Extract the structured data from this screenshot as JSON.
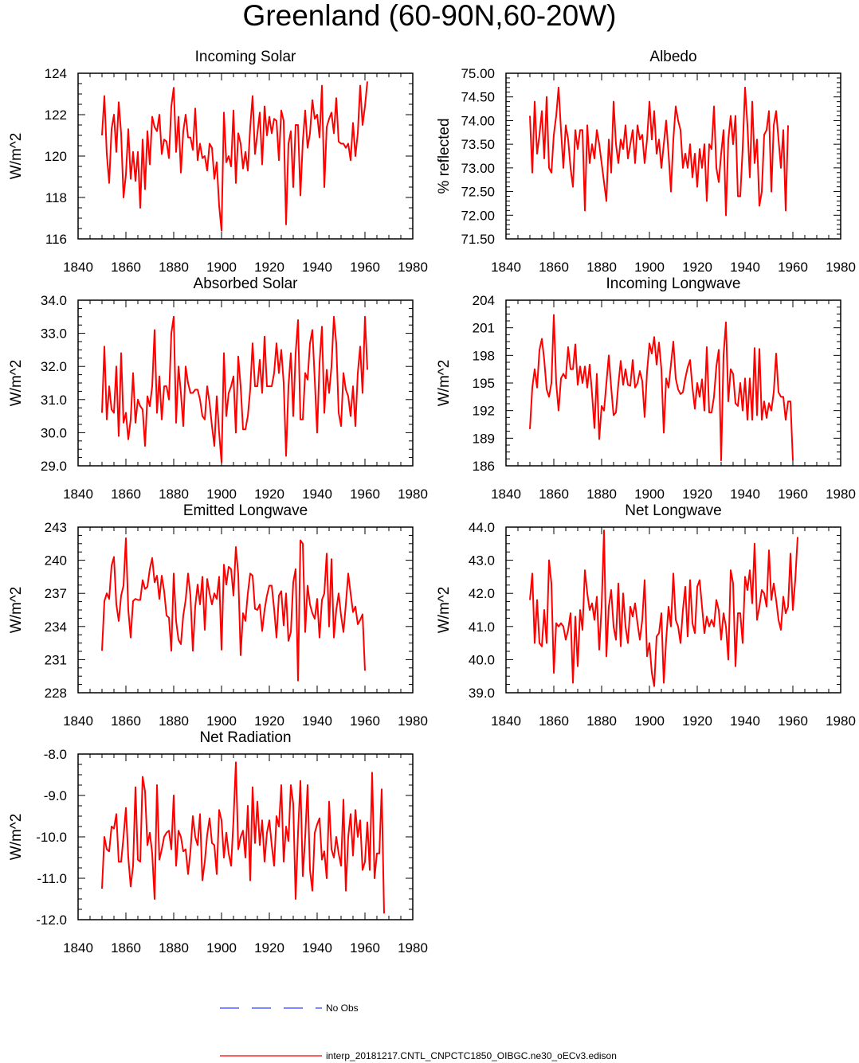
{
  "figure": {
    "title": "Greenland (60-90N,60-20W)",
    "legend": [
      {
        "label": "No Obs",
        "color": "#3344ff",
        "style": "dashed"
      },
      {
        "label": "interp_20181217.CNTL_CNPCTC1850_OIBGC.ne30_oECv3.edison",
        "color": "#ff0000",
        "style": "solid"
      }
    ]
  },
  "chart_data": [
    {
      "type": "line",
      "title": "Incoming Solar",
      "ylabel": "W/m^2",
      "xlim": [
        1840,
        1980
      ],
      "xticks": [
        1840,
        1860,
        1880,
        1900,
        1920,
        1940,
        1960,
        1980
      ],
      "ylim": [
        116,
        124
      ],
      "yticks": [
        "116",
        "118",
        "120",
        "122",
        "124"
      ],
      "x_start": 1850,
      "color": "#ff0000",
      "values": [
        121.0,
        122.9,
        120.1,
        118.7,
        121.3,
        122.0,
        120.2,
        122.6,
        121.1,
        118.0,
        119.1,
        121.3,
        118.9,
        120.2,
        118.8,
        120.2,
        117.5,
        120.8,
        118.4,
        121.2,
        119.6,
        121.9,
        121.4,
        121.2,
        122.0,
        120.1,
        120.8,
        120.7,
        119.9,
        122.4,
        123.3,
        120.2,
        121.9,
        119.2,
        121.2,
        122.0,
        120.9,
        120.9,
        120.3,
        122.3,
        119.8,
        120.6,
        119.9,
        120.0,
        119.3,
        120.6,
        120.4,
        118.9,
        119.7,
        117.6,
        116.4,
        122.1,
        119.7,
        120.0,
        119.5,
        122.2,
        118.7,
        121.1,
        120.6,
        119.4,
        120.2,
        119.3,
        121.4,
        122.9,
        120.1,
        121.1,
        122.1,
        119.6,
        122.4,
        121.0,
        121.9,
        121.1,
        121.8,
        121.7,
        119.8,
        122.2,
        121.7,
        116.7,
        120.6,
        121.2,
        118.5,
        121.5,
        121.5,
        118.1,
        120.7,
        122.2,
        120.4,
        121.1,
        122.7,
        121.8,
        122.0,
        120.9,
        123.4,
        118.5,
        121.4,
        121.8,
        122.1,
        121.1,
        122.8,
        120.7,
        120.6,
        120.6,
        120.4,
        120.6,
        119.8,
        121.6,
        120.0,
        121.1,
        123.4,
        121.5,
        122.4,
        123.6
      ]
    },
    {
      "type": "line",
      "title": "Albedo",
      "ylabel": "% reflected",
      "xlim": [
        1840,
        1980
      ],
      "xticks": [
        1840,
        1860,
        1880,
        1900,
        1920,
        1940,
        1960,
        1980
      ],
      "ylim": [
        71.5,
        75.0
      ],
      "yticks": [
        "71.50",
        "72.00",
        "72.50",
        "73.00",
        "73.50",
        "74.00",
        "74.50",
        "75.00"
      ],
      "x_start": 1850,
      "color": "#ff0000",
      "values": [
        74.1,
        72.9,
        74.4,
        73.3,
        73.7,
        74.2,
        73.2,
        74.5,
        73.0,
        72.9,
        73.7,
        74.1,
        74.7,
        73.8,
        73.0,
        73.9,
        73.6,
        73.0,
        72.6,
        73.8,
        73.4,
        73.8,
        73.8,
        72.1,
        73.9,
        73.1,
        73.5,
        73.2,
        73.8,
        73.5,
        73.1,
        72.7,
        72.3,
        73.6,
        72.9,
        74.4,
        73.5,
        73.1,
        73.6,
        73.4,
        73.9,
        73.2,
        73.5,
        73.8,
        73.1,
        73.9,
        73.6,
        73.7,
        73.1,
        73.6,
        74.4,
        73.6,
        74.2,
        73.3,
        73.6,
        73.0,
        73.5,
        74.0,
        73.3,
        72.5,
        73.6,
        74.3,
        74.0,
        73.8,
        73.0,
        73.3,
        73.0,
        73.5,
        72.8,
        73.3,
        72.6,
        73.4,
        73.0,
        73.5,
        72.3,
        73.5,
        73.4,
        74.3,
        73.0,
        72.7,
        73.3,
        73.8,
        72.0,
        73.6,
        74.1,
        73.5,
        74.1,
        72.4,
        72.4,
        73.4,
        74.7,
        73.9,
        72.8,
        74.4,
        73.1,
        73.6,
        72.2,
        72.5,
        73.7,
        73.8,
        74.2,
        72.5,
        73.9,
        74.2,
        73.6,
        73.0,
        73.8,
        72.1,
        73.9
      ]
    },
    {
      "type": "line",
      "title": "Absorbed Solar",
      "ylabel": "W/m^2",
      "xlim": [
        1840,
        1980
      ],
      "xticks": [
        1840,
        1860,
        1880,
        1900,
        1920,
        1940,
        1960,
        1980
      ],
      "ylim": [
        29.0,
        34.0
      ],
      "yticks": [
        "29.0",
        "30.0",
        "31.0",
        "32.0",
        "33.0",
        "34.0"
      ],
      "x_start": 1850,
      "color": "#ff0000",
      "values": [
        30.6,
        32.6,
        30.4,
        31.4,
        30.7,
        30.6,
        32.0,
        29.9,
        32.4,
        30.3,
        30.6,
        29.8,
        30.4,
        31.8,
        30.3,
        31.0,
        30.8,
        30.7,
        29.6,
        31.1,
        30.8,
        31.4,
        33.1,
        30.6,
        31.7,
        30.4,
        31.4,
        31.4,
        31.0,
        33.0,
        33.5,
        30.3,
        32.0,
        31.2,
        30.2,
        32.0,
        31.5,
        31.2,
        31.2,
        31.3,
        31.3,
        31.0,
        30.5,
        30.4,
        31.4,
        30.9,
        30.2,
        29.6,
        31.1,
        30.0,
        29.1,
        32.4,
        30.5,
        31.2,
        31.4,
        31.7,
        30.0,
        32.3,
        31.4,
        30.1,
        30.1,
        30.5,
        31.3,
        32.7,
        31.4,
        31.4,
        32.2,
        31.2,
        32.9,
        31.4,
        31.4,
        31.4,
        31.8,
        32.7,
        31.8,
        32.5,
        31.5,
        29.3,
        31.4,
        32.4,
        30.5,
        32.4,
        33.4,
        30.4,
        30.4,
        31.8,
        31.6,
        32.7,
        33.1,
        31.6,
        30.0,
        32.1,
        33.2,
        30.6,
        31.9,
        31.2,
        32.0,
        33.5,
        32.7,
        30.6,
        30.2,
        31.8,
        31.3,
        31.1,
        30.5,
        31.4,
        30.2,
        31.8,
        32.6,
        31.2,
        33.5,
        31.9
      ]
    },
    {
      "type": "line",
      "title": "Incoming Longwave",
      "ylabel": "W/m^2",
      "xlim": [
        1840,
        1980
      ],
      "xticks": [
        1840,
        1860,
        1880,
        1900,
        1920,
        1940,
        1960,
        1980
      ],
      "ylim": [
        186,
        204
      ],
      "yticks": [
        "186",
        "189",
        "192",
        "195",
        "198",
        "201",
        "204"
      ],
      "x_start": 1850,
      "color": "#ff0000",
      "values": [
        190.0,
        194.5,
        196.5,
        194.5,
        198.6,
        199.8,
        197.5,
        194.3,
        193.5,
        195.0,
        202.4,
        195.0,
        192.0,
        195.5,
        196.0,
        195.5,
        198.9,
        196.5,
        196.5,
        199.2,
        194.8,
        196.8,
        195.0,
        196.8,
        194.5,
        197.0,
        193.8,
        190.1,
        196.0,
        188.9,
        192.5,
        192.0,
        195.0,
        198.0,
        194.5,
        191.5,
        191.8,
        194.9,
        197.4,
        194.8,
        196.5,
        194.8,
        194.7,
        197.5,
        194.5,
        195.0,
        196.3,
        195.2,
        191.3,
        196.2,
        199.3,
        198.2,
        200.0,
        197.0,
        199.4,
        196.5,
        189.6,
        195.5,
        194.5,
        197.0,
        199.5,
        195.5,
        194.3,
        193.8,
        194.0,
        195.5,
        196.7,
        197.5,
        194.5,
        192.2,
        195.0,
        193.5,
        195.4,
        192.0,
        198.9,
        191.8,
        191.8,
        193.5,
        196.8,
        198.6,
        186.6,
        198.0,
        201.6,
        193.0,
        196.5,
        196.0,
        192.8,
        192.5,
        195.0,
        192.0,
        195.5,
        191.0,
        195.5,
        191.0,
        198.8,
        191.5,
        198.7,
        191.0,
        193.0,
        191.2,
        192.8,
        192.0,
        194.0,
        198.2,
        194.0,
        193.5,
        193.5,
        191.0,
        193.0,
        193.0,
        186.6
      ]
    },
    {
      "type": "line",
      "title": "Emitted Longwave",
      "ylabel": "W/m^2",
      "xlim": [
        1840,
        1980
      ],
      "xticks": [
        1840,
        1860,
        1880,
        1900,
        1920,
        1940,
        1960,
        1980
      ],
      "ylim": [
        228,
        243
      ],
      "yticks": [
        "228",
        "231",
        "234",
        "237",
        "240",
        "243"
      ],
      "x_start": 1850,
      "color": "#ff0000",
      "values": [
        231.8,
        236.3,
        237.0,
        236.5,
        239.5,
        240.3,
        236.0,
        234.5,
        236.8,
        237.7,
        242.0,
        235.5,
        233.0,
        236.3,
        236.5,
        236.4,
        236.4,
        238.2,
        237.4,
        237.6,
        239.2,
        240.2,
        238.0,
        238.6,
        236.5,
        238.6,
        237.2,
        235.0,
        234.8,
        231.8,
        238.8,
        234.5,
        232.8,
        232.4,
        235.0,
        236.4,
        238.8,
        236.8,
        231.8,
        235.8,
        237.8,
        236.0,
        238.5,
        233.7,
        238.3,
        237.0,
        236.0,
        237.0,
        236.5,
        238.5,
        231.9,
        239.6,
        237.8,
        239.4,
        239.2,
        236.8,
        241.2,
        238.7,
        231.4,
        235.2,
        234.5,
        237.0,
        238.8,
        238.6,
        235.6,
        235.5,
        236.0,
        233.6,
        235.5,
        236.8,
        237.7,
        237.7,
        235.6,
        233.0,
        236.8,
        237.2,
        234.1,
        237.0,
        232.7,
        233.5,
        238.0,
        239.2,
        229.1,
        241.8,
        241.5,
        233.5,
        237.7,
        236.0,
        235.2,
        234.7,
        236.5,
        233.0,
        236.4,
        237.0,
        240.6,
        234.0,
        240.1,
        233.0,
        235.5,
        237.0,
        235.0,
        233.5,
        236.0,
        238.8,
        237.0,
        235.3,
        235.8,
        234.2,
        234.6,
        235.1,
        230.0
      ]
    },
    {
      "type": "line",
      "title": "Net Longwave",
      "ylabel": "W/m^2",
      "xlim": [
        1840,
        1980
      ],
      "xticks": [
        1840,
        1860,
        1880,
        1900,
        1920,
        1940,
        1960,
        1980
      ],
      "ylim": [
        39.0,
        44.0
      ],
      "yticks": [
        "39.0",
        "40.0",
        "41.0",
        "42.0",
        "43.0",
        "44.0"
      ],
      "x_start": 1850,
      "color": "#ff0000",
      "values": [
        41.8,
        42.6,
        40.5,
        41.8,
        40.5,
        40.4,
        41.5,
        40.5,
        43.0,
        42.3,
        39.6,
        41.1,
        41.0,
        41.1,
        41.0,
        40.6,
        40.9,
        41.4,
        39.3,
        41.3,
        39.8,
        41.5,
        40.9,
        42.7,
        42.0,
        41.5,
        41.7,
        41.2,
        41.9,
        40.3,
        41.6,
        43.9,
        40.1,
        41.6,
        42.1,
        41.0,
        40.6,
        42.3,
        40.4,
        42.0,
        41.0,
        40.5,
        41.6,
        41.3,
        41.7,
        41.1,
        40.6,
        41.2,
        42.4,
        40.1,
        40.5,
        39.6,
        39.2,
        40.7,
        40.8,
        41.4,
        39.3,
        40.6,
        41.6,
        41.0,
        42.6,
        41.2,
        41.0,
        40.5,
        41.5,
        42.2,
        40.7,
        42.4,
        41.1,
        40.8,
        42.2,
        42.4,
        41.6,
        40.8,
        41.3,
        41.0,
        41.2,
        41.0,
        41.8,
        41.5,
        40.6,
        41.4,
        41.0,
        40.0,
        42.7,
        42.3,
        39.8,
        41.4,
        41.4,
        40.5,
        42.5,
        42.1,
        42.7,
        41.7,
        43.5,
        41.2,
        41.6,
        42.1,
        42.0,
        41.6,
        43.3,
        41.8,
        42.3,
        41.8,
        41.2,
        40.9,
        41.9,
        41.4,
        41.6,
        43.2,
        41.5,
        42.4,
        43.7
      ]
    },
    {
      "type": "line",
      "title": "Net Radiation",
      "ylabel": "W/m^2",
      "xlim": [
        1840,
        1980
      ],
      "xticks": [
        1840,
        1860,
        1880,
        1900,
        1920,
        1940,
        1960,
        1980
      ],
      "ylim": [
        -12.0,
        -8.0
      ],
      "yticks": [
        "-12.0",
        "-11.0",
        "-10.0",
        "-9.0",
        "-8.0"
      ],
      "x_start": 1850,
      "color": "#ff0000",
      "values": [
        -11.25,
        -10.0,
        -10.3,
        -10.35,
        -9.75,
        -9.8,
        -9.45,
        -10.6,
        -10.6,
        -10.0,
        -9.3,
        -10.5,
        -11.2,
        -10.7,
        -8.8,
        -10.55,
        -10.6,
        -8.55,
        -8.9,
        -10.2,
        -9.9,
        -10.4,
        -11.5,
        -8.75,
        -10.55,
        -10.3,
        -10.0,
        -9.9,
        -9.85,
        -10.3,
        -9.0,
        -10.7,
        -9.85,
        -10.0,
        -10.35,
        -10.3,
        -10.9,
        -10.35,
        -9.5,
        -10.0,
        -10.2,
        -9.45,
        -11.05,
        -10.6,
        -9.95,
        -9.55,
        -10.15,
        -10.2,
        -10.9,
        -9.35,
        -9.6,
        -10.5,
        -9.9,
        -10.4,
        -10.7,
        -9.6,
        -8.2,
        -10.3,
        -10.0,
        -9.85,
        -10.5,
        -9.25,
        -11.05,
        -8.8,
        -10.15,
        -9.15,
        -10.2,
        -9.6,
        -10.6,
        -9.9,
        -9.6,
        -10.2,
        -10.7,
        -9.5,
        -9.75,
        -8.75,
        -10.6,
        -9.75,
        -10.1,
        -8.75,
        -9.2,
        -11.5,
        -9.9,
        -8.65,
        -10.95,
        -10.0,
        -8.75,
        -10.8,
        -11.3,
        -9.9,
        -9.7,
        -9.55,
        -10.55,
        -10.35,
        -11.0,
        -9.15,
        -10.3,
        -10.5,
        -10.0,
        -10.4,
        -10.7,
        -9.1,
        -11.3,
        -10.0,
        -9.45,
        -10.45,
        -9.35,
        -10.0,
        -9.6,
        -10.8,
        -10.6,
        -9.65,
        -10.8,
        -8.45,
        -11.0,
        -10.4,
        -10.4,
        -8.85,
        -11.85
      ]
    }
  ]
}
